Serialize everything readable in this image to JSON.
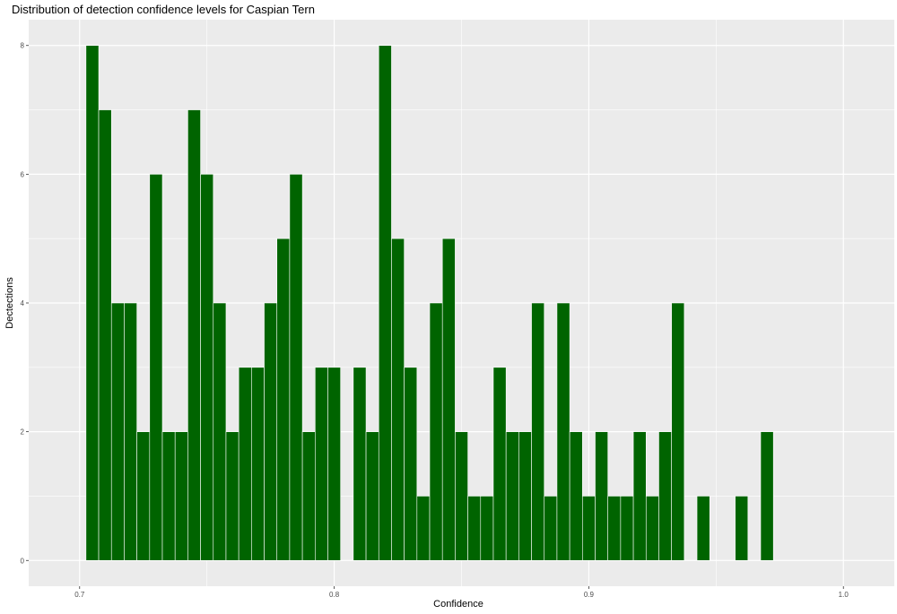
{
  "chart_data": {
    "type": "bar",
    "title": "Distribution of detection confidence levels for Caspian Tern",
    "xlabel": "Confidence",
    "ylabel": "Dectections",
    "xlim": [
      0.68,
      1.02
    ],
    "ylim": [
      -0.4,
      8.4
    ],
    "xticks": [
      0.7,
      0.8,
      0.9,
      1.0
    ],
    "xtick_labels": [
      "0.7",
      "0.8",
      "0.9",
      "1.0"
    ],
    "yticks": [
      0,
      2,
      4,
      6,
      8
    ],
    "ytick_labels": [
      "0",
      "2",
      "4",
      "6",
      "8"
    ],
    "grid": true,
    "bin_start": 0.7025,
    "bin_width": 0.005,
    "values": [
      8,
      7,
      4,
      4,
      2,
      6,
      2,
      2,
      7,
      6,
      4,
      2,
      3,
      3,
      4,
      5,
      6,
      2,
      3,
      3,
      0,
      3,
      2,
      8,
      5,
      3,
      1,
      4,
      5,
      2,
      1,
      1,
      3,
      2,
      2,
      4,
      1,
      4,
      2,
      1,
      2,
      1,
      1,
      2,
      1,
      2,
      4,
      0,
      1,
      0,
      0,
      1,
      0,
      2
    ],
    "bar_color": "#006400",
    "panel_color": "#ebebeb"
  }
}
